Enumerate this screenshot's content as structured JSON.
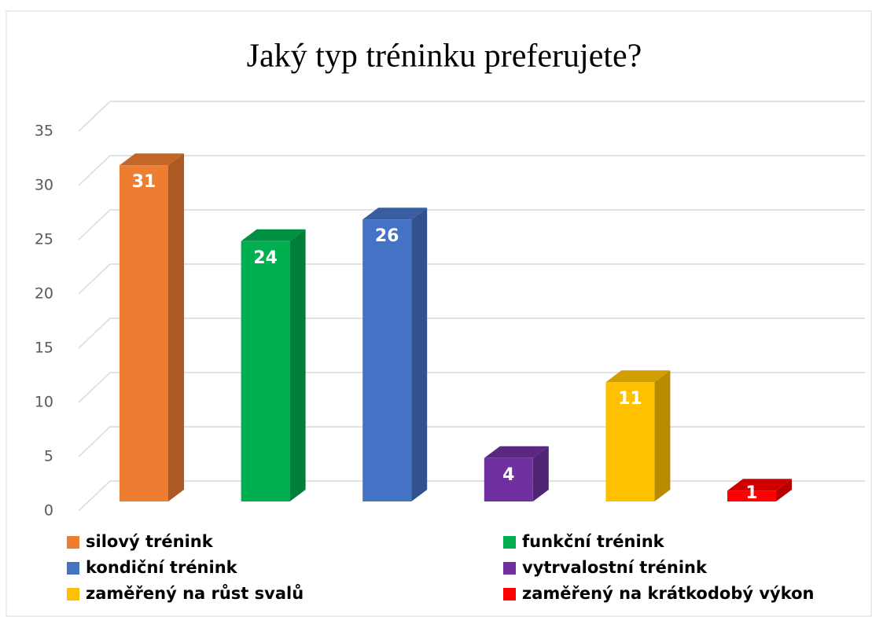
{
  "chart_data": {
    "type": "bar",
    "title": "Jaký typ tréninku preferujete?",
    "series": [
      {
        "name": "silový trénink",
        "color": "#ed7d31",
        "values": [
          31
        ]
      },
      {
        "name": "funkční trénink",
        "color": "#00b050",
        "values": [
          24
        ]
      },
      {
        "name": "kondiční trénink",
        "color": "#4472c4",
        "values": [
          26
        ]
      },
      {
        "name": "vytrvalostní trénink",
        "color": "#7030a0",
        "values": [
          4
        ]
      },
      {
        "name": "zaměřený na růst svalů",
        "color": "#ffc000",
        "values": [
          11
        ]
      },
      {
        "name": "zaměřený na krátkodobý výkon",
        "color": "#ff0000",
        "values": [
          1
        ]
      }
    ],
    "ylim": [
      0,
      35
    ],
    "yticks": [
      0,
      5,
      10,
      15,
      20,
      25,
      30,
      35
    ],
    "grid": true,
    "legend": "bottom"
  }
}
